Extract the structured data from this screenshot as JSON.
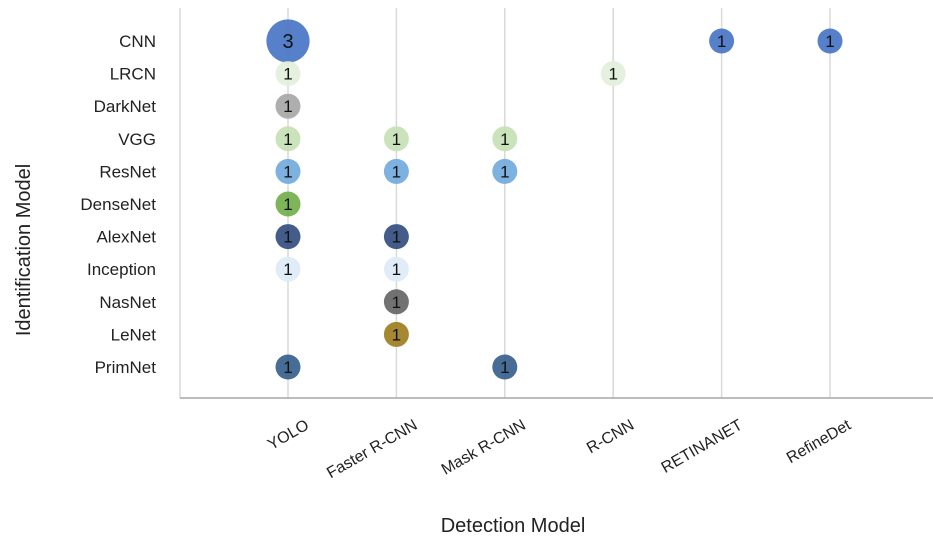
{
  "chart_data": {
    "type": "scatter",
    "xlabel": "Detection Model",
    "ylabel": "Identification Model",
    "x_categories": [
      "YOLO",
      "Faster R-CNN",
      "Mask R-CNN",
      "R-CNN",
      "RETINANET",
      "RefineDet"
    ],
    "y_categories": [
      "CNN",
      "LRCN",
      "DarkNet",
      "VGG",
      "ResNet",
      "DenseNet",
      "AlexNet",
      "Inception",
      "NasNet",
      "LeNet",
      "PrimNet"
    ],
    "grid": true,
    "points": [
      {
        "x": "YOLO",
        "y": "CNN",
        "value": 3,
        "color": "#4472C4"
      },
      {
        "x": "RETINANET",
        "y": "CNN",
        "value": 1,
        "color": "#4472C4"
      },
      {
        "x": "RefineDet",
        "y": "CNN",
        "value": 1,
        "color": "#4472C4"
      },
      {
        "x": "YOLO",
        "y": "LRCN",
        "value": 1,
        "color": "#E2EFDA"
      },
      {
        "x": "R-CNN",
        "y": "LRCN",
        "value": 1,
        "color": "#E2EFDA"
      },
      {
        "x": "YOLO",
        "y": "DarkNet",
        "value": 1,
        "color": "#A5A5A5"
      },
      {
        "x": "YOLO",
        "y": "VGG",
        "value": 1,
        "color": "#C5E0B4"
      },
      {
        "x": "Faster R-CNN",
        "y": "VGG",
        "value": 1,
        "color": "#C5E0B4"
      },
      {
        "x": "Mask R-CNN",
        "y": "VGG",
        "value": 1,
        "color": "#C5E0B4"
      },
      {
        "x": "YOLO",
        "y": "ResNet",
        "value": 1,
        "color": "#6FA8DC"
      },
      {
        "x": "Faster R-CNN",
        "y": "ResNet",
        "value": 1,
        "color": "#6FA8DC"
      },
      {
        "x": "Mask R-CNN",
        "y": "ResNet",
        "value": 1,
        "color": "#6FA8DC"
      },
      {
        "x": "YOLO",
        "y": "DenseNet",
        "value": 1,
        "color": "#70AD47"
      },
      {
        "x": "YOLO",
        "y": "AlexNet",
        "value": 1,
        "color": "#2F4A7D"
      },
      {
        "x": "Faster R-CNN",
        "y": "AlexNet",
        "value": 1,
        "color": "#2F4A7D"
      },
      {
        "x": "YOLO",
        "y": "Inception",
        "value": 1,
        "color": "#DDEBF7"
      },
      {
        "x": "Faster R-CNN",
        "y": "Inception",
        "value": 1,
        "color": "#DDEBF7"
      },
      {
        "x": "Faster R-CNN",
        "y": "NasNet",
        "value": 1,
        "color": "#636363"
      },
      {
        "x": "Faster R-CNN",
        "y": "LeNet",
        "value": 1,
        "color": "#9C7A1C"
      },
      {
        "x": "YOLO",
        "y": "PrimNet",
        "value": 1,
        "color": "#335C8A"
      },
      {
        "x": "Mask R-CNN",
        "y": "PrimNet",
        "value": 1,
        "color": "#335C8A"
      }
    ]
  }
}
